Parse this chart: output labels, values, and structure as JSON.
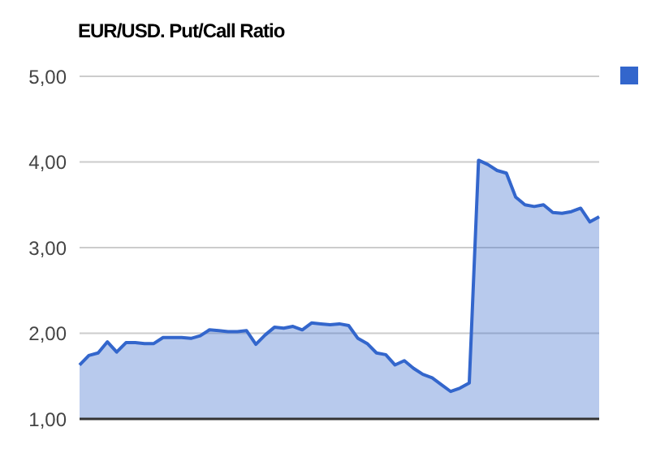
{
  "chart_data": {
    "type": "area",
    "title": "EUR/USD. Put/Call Ratio",
    "categories": [
      null,
      null,
      null,
      null,
      null,
      null,
      null,
      null,
      null,
      null,
      null,
      null,
      null,
      null,
      null,
      null,
      null,
      null,
      null,
      null,
      null,
      null,
      null,
      null,
      null,
      null,
      null,
      null,
      null,
      null,
      null,
      null,
      null,
      null,
      null,
      null,
      null,
      null,
      null,
      null,
      null,
      null,
      null,
      null,
      null,
      null,
      null,
      null,
      null,
      null,
      null,
      null,
      null,
      null,
      null,
      null,
      null
    ],
    "series": [
      {
        "color": "#3366cc",
        "values": [
          1.63,
          1.74,
          1.77,
          1.9,
          1.78,
          1.89,
          1.89,
          1.88,
          1.88,
          1.95,
          1.95,
          1.95,
          1.94,
          1.97,
          2.04,
          2.03,
          2.02,
          2.02,
          2.03,
          1.87,
          1.98,
          2.07,
          2.06,
          2.08,
          2.04,
          2.12,
          2.11,
          2.1,
          2.11,
          2.09,
          1.94,
          1.88,
          1.77,
          1.75,
          1.63,
          1.68,
          1.59,
          1.52,
          1.48,
          1.4,
          1.32,
          1.36,
          1.42,
          4.02,
          3.97,
          3.9,
          3.87,
          3.59,
          3.5,
          3.48,
          3.5,
          3.41,
          3.4,
          3.42,
          3.46,
          3.3,
          3.36
        ]
      }
    ],
    "ylim": [
      1,
      5
    ],
    "yticks": [
      {
        "value": 1,
        "label": "1,00"
      },
      {
        "value": 2,
        "label": "2,00"
      },
      {
        "value": 3,
        "label": "3,00"
      },
      {
        "value": 4,
        "label": "4,00"
      },
      {
        "value": 5,
        "label": "5,00"
      }
    ],
    "grid": "y",
    "tick_labels": "y"
  }
}
